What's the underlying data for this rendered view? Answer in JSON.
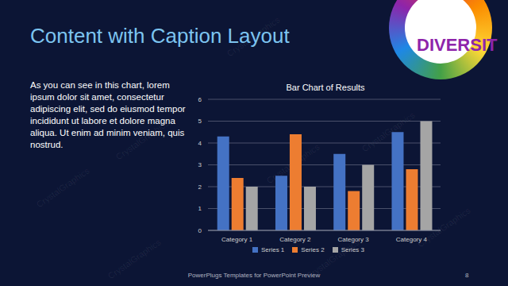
{
  "slide": {
    "title": "Content with Caption Layout",
    "caption": "As you can see in this chart, lorem ipsum dolor sit amet, consectetur adipiscing elit, sed do eiusmod tempor incididunt ut labore et dolore magna aliqua. Ut enim ad minim veniam, quis nostrud.",
    "footer": "PowerPlugs Templates for PowerPoint Preview",
    "page_number": "8",
    "logo_text": "DIVERSIT",
    "watermark": "CrystalGraphics"
  },
  "chart_data": {
    "type": "bar",
    "title": "Bar Chart of Results",
    "categories": [
      "Category 1",
      "Category 2",
      "Category 3",
      "Category 4"
    ],
    "series": [
      {
        "name": "Series 1",
        "color": "#4472c4",
        "values": [
          4.3,
          2.5,
          3.5,
          4.5
        ]
      },
      {
        "name": "Series 2",
        "color": "#ed7d31",
        "values": [
          2.4,
          4.4,
          1.8,
          2.8
        ]
      },
      {
        "name": "Series 3",
        "color": "#a5a5a5",
        "values": [
          2,
          2,
          3,
          5
        ]
      }
    ],
    "ylim": [
      0,
      6
    ],
    "yticks": [
      0,
      1,
      2,
      3,
      4,
      5,
      6
    ],
    "grid": true,
    "legend": "bottom"
  }
}
